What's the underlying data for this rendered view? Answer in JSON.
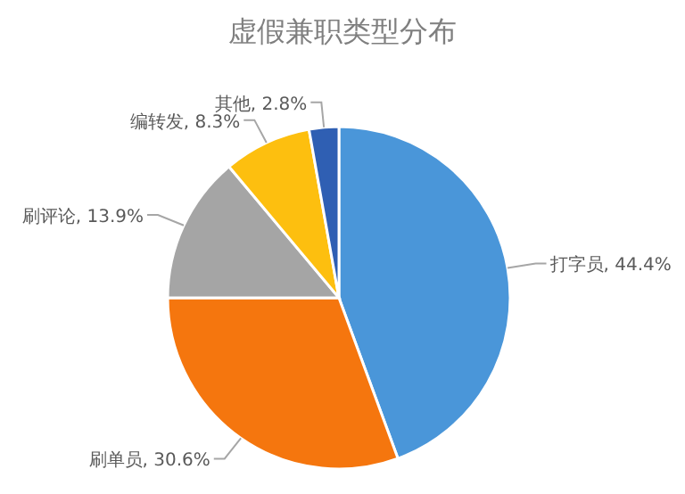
{
  "chart_data": {
    "type": "pie",
    "title": "虚假兼职类型分布",
    "categories": [
      "打字员",
      "刷单员",
      "刷评论",
      "编转发",
      "其他"
    ],
    "values": [
      44.4,
      30.6,
      13.9,
      8.3,
      2.8
    ],
    "colors": [
      "#4a96d9",
      "#f5760e",
      "#a5a5a5",
      "#fdbf0f",
      "#2f5fb3"
    ],
    "value_labels": [
      ", 44.4%",
      ", 30.6%",
      ", 13.9%",
      ", 8.3%",
      ", 2.8%"
    ],
    "legend": false
  }
}
